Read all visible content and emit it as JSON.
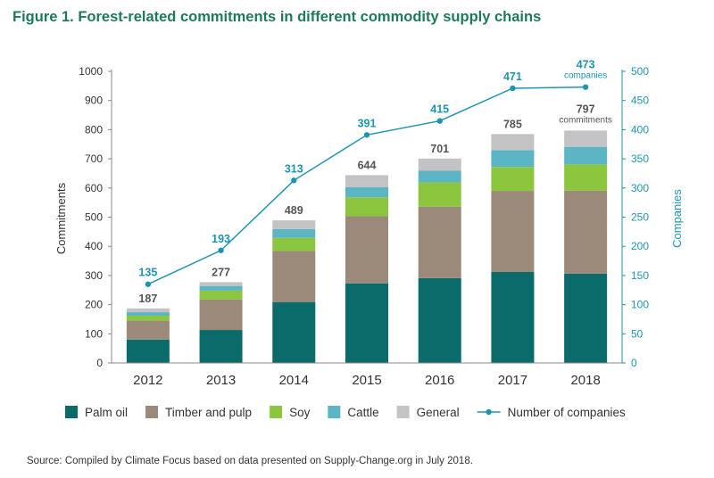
{
  "figure": {
    "title": "Figure 1. Forest-related commitments in different commodity supply chains",
    "source": "Source: Compiled by Climate Focus based on data presented on Supply-Change.org in July 2018."
  },
  "chart_data": {
    "type": "bar",
    "stacked": true,
    "categories": [
      "2012",
      "2013",
      "2014",
      "2015",
      "2016",
      "2017",
      "2018"
    ],
    "series": [
      {
        "name": "Palm oil",
        "color": "#0b6a6a",
        "values": [
          80,
          113,
          209,
          273,
          291,
          312,
          306
        ]
      },
      {
        "name": "Timber and pulp",
        "color": "#9b8a79",
        "values": [
          65,
          105,
          175,
          230,
          245,
          278,
          285
        ]
      },
      {
        "name": "Soy",
        "color": "#8cc63f",
        "values": [
          17,
          30,
          45,
          65,
          83,
          82,
          90
        ]
      },
      {
        "name": "Cattle",
        "color": "#5bb5c2",
        "values": [
          12,
          16,
          30,
          35,
          40,
          58,
          60
        ]
      },
      {
        "name": "General",
        "color": "#c3c3c6",
        "values": [
          13,
          13,
          30,
          41,
          42,
          55,
          56
        ]
      }
    ],
    "totals": [
      187,
      277,
      489,
      644,
      701,
      785,
      797
    ],
    "total_annotation": "commitments",
    "line_series": {
      "name": "Number of companies",
      "color": "#1e95b0",
      "values": [
        135,
        193,
        313,
        391,
        415,
        471,
        473
      ],
      "annotation": "companies"
    },
    "ylabel": "Commitments",
    "ylim": [
      0,
      1000
    ],
    "yticks": [
      0,
      100,
      200,
      300,
      400,
      500,
      600,
      700,
      800,
      900,
      1000
    ],
    "y2label": "Companies",
    "y2lim": [
      0,
      500
    ],
    "y2ticks": [
      0,
      50,
      100,
      150,
      200,
      250,
      300,
      350,
      400,
      450,
      500
    ],
    "y2color": "#1e95b0",
    "grid": false,
    "legend_position": "bottom"
  }
}
